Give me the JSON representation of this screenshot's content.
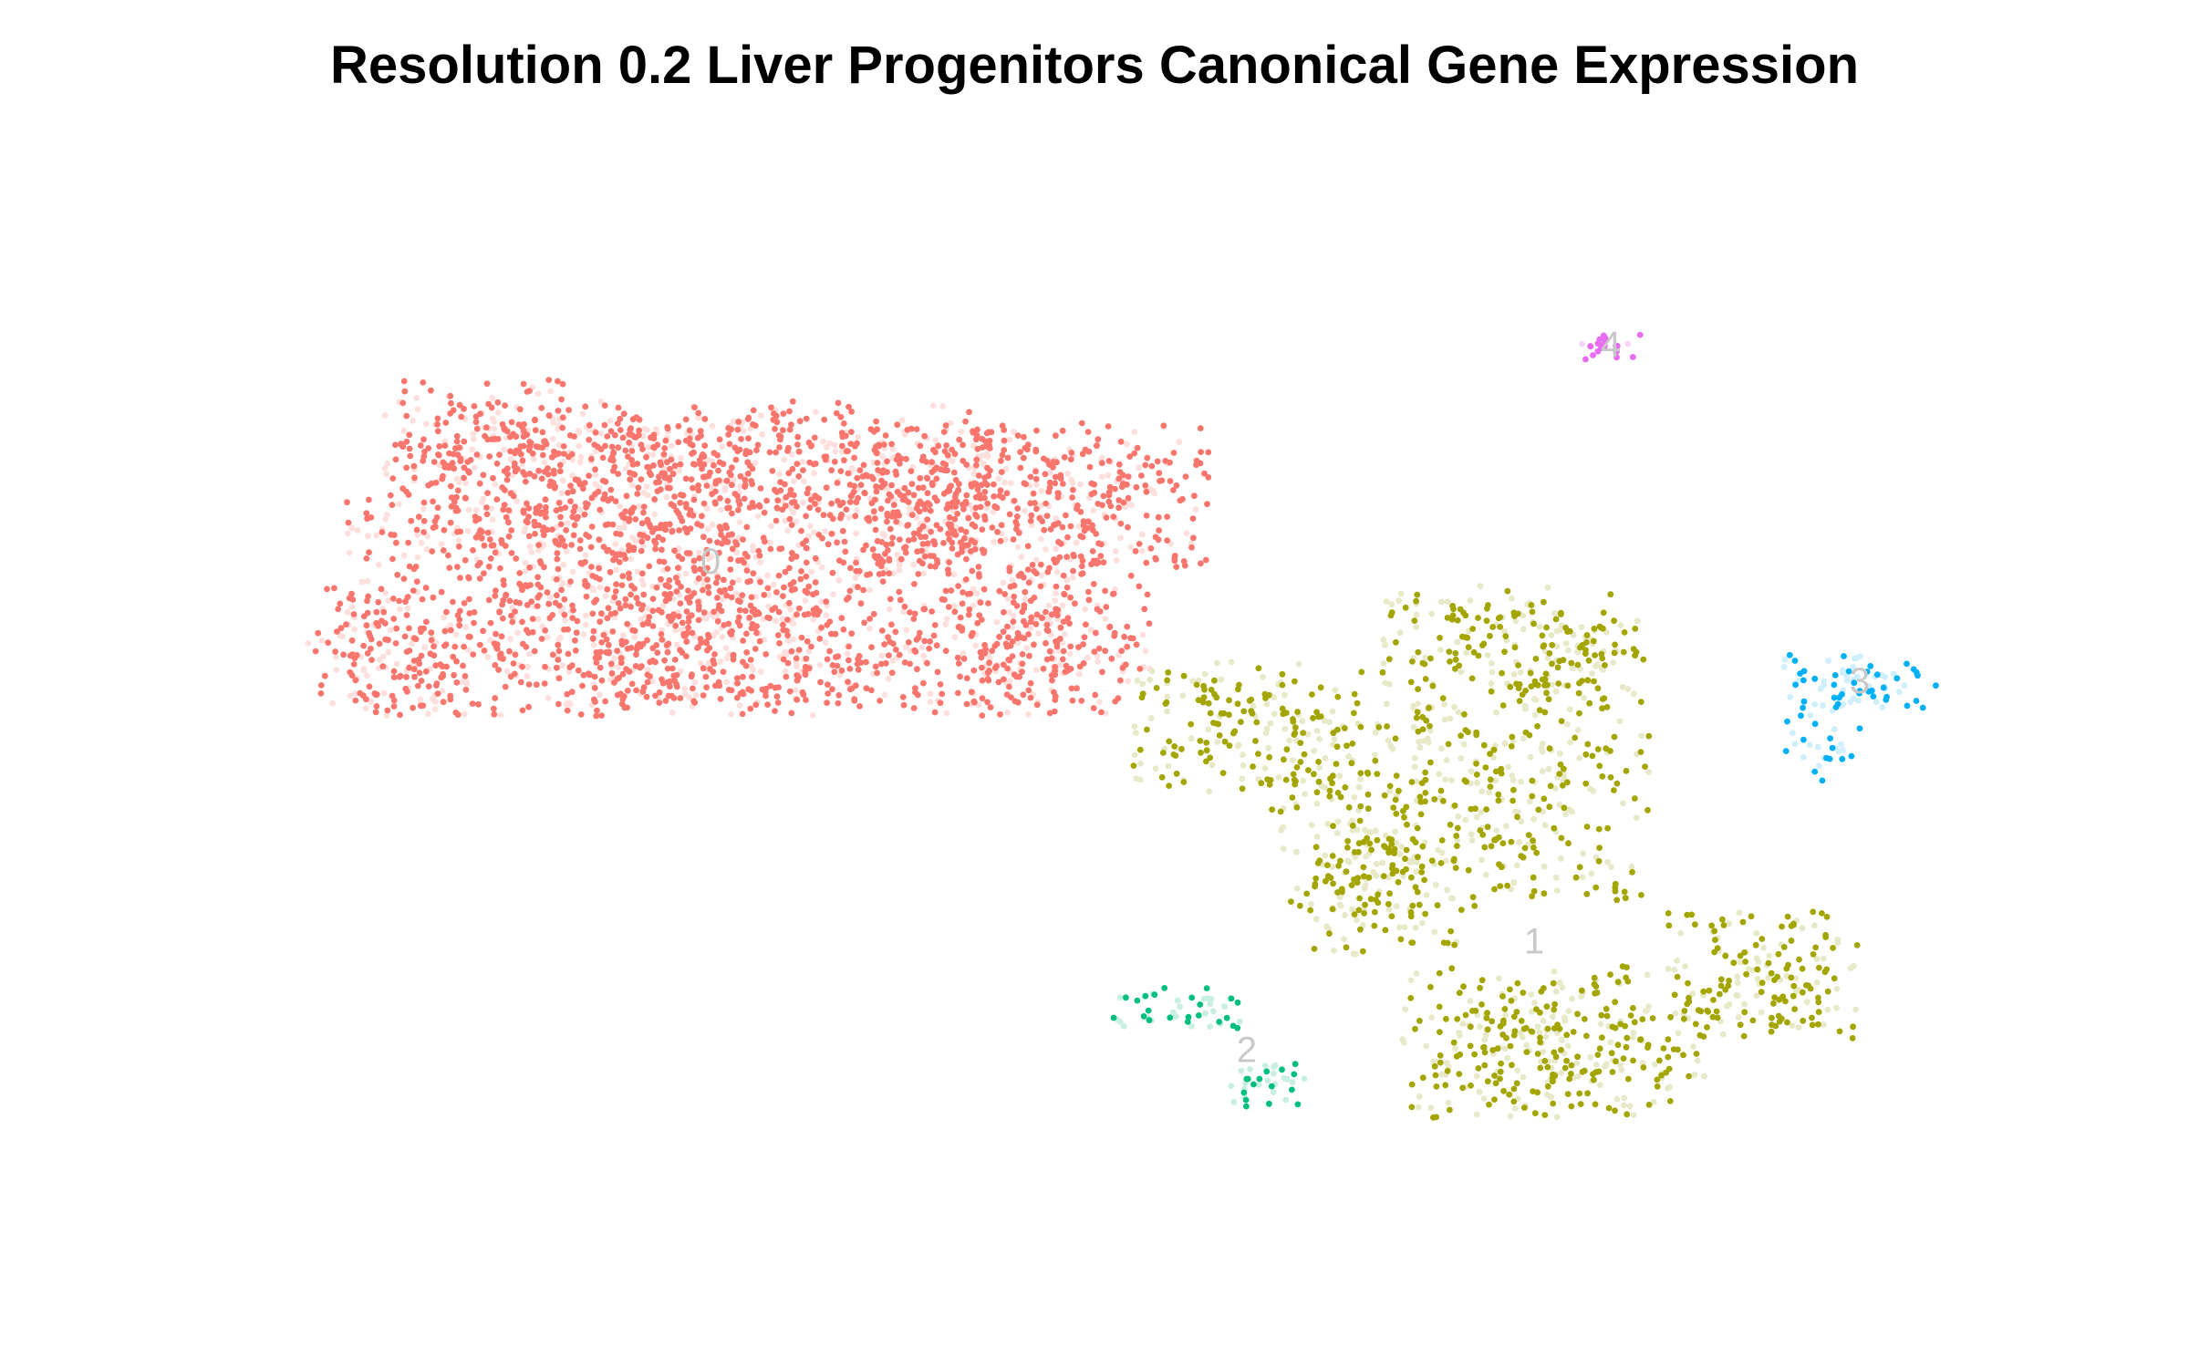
{
  "chart_data": {
    "type": "scatter",
    "title": "Resolution 0.2 Liver Progenitors Canonical Gene Expression",
    "xlabel": "",
    "ylabel": "",
    "axes_visible": false,
    "grid": false,
    "legend": "none",
    "xlim": [
      0,
      100
    ],
    "ylim": [
      0,
      100
    ],
    "series": [
      {
        "name": "0",
        "color": "#F8766D",
        "faint_color": "#FDE0DE",
        "label_pos": [
          29,
          64
        ],
        "blobs": [
          [
            28,
            72,
            16,
            7,
            950,
            0.25
          ],
          [
            22,
            60,
            12,
            10,
            700,
            0.25
          ],
          [
            34,
            58,
            14,
            8,
            650,
            0.3
          ],
          [
            45,
            70,
            10,
            7,
            550,
            0.25
          ],
          [
            47,
            58,
            5,
            8,
            250,
            0.3
          ],
          [
            12,
            56,
            4,
            6,
            120,
            0.4
          ],
          [
            18,
            76,
            5,
            5,
            120,
            0.3
          ]
        ]
      },
      {
        "name": "1",
        "color": "#A3A500",
        "faint_color": "#E8E9C9",
        "label_pos": [
          72,
          29
        ],
        "blobs": [
          [
            57,
            49,
            6,
            6,
            180,
            0.4
          ],
          [
            68,
            42,
            10,
            10,
            450,
            0.4
          ],
          [
            73,
            20,
            8,
            7,
            350,
            0.4
          ],
          [
            84,
            26,
            5,
            6,
            180,
            0.4
          ],
          [
            70,
            57,
            6,
            5,
            150,
            0.4
          ],
          [
            64,
            34,
            4,
            6,
            120,
            0.4
          ],
          [
            74,
            55,
            4,
            5,
            100,
            0.45
          ]
        ]
      },
      {
        "name": "2",
        "color": "#00BF7D",
        "faint_color": "#C8EFE2",
        "label_pos": [
          57,
          19
        ],
        "blobs": [
          [
            53,
            23,
            4,
            2,
            45,
            0.45
          ],
          [
            58,
            16,
            2,
            2,
            35,
            0.55
          ]
        ]
      },
      {
        "name": "3",
        "color": "#00B0F6",
        "faint_color": "#CFEFFC",
        "label_pos": [
          89,
          53
        ],
        "blobs": [
          [
            89,
            53,
            4,
            3,
            80,
            0.5
          ],
          [
            87,
            47,
            2,
            3,
            25,
            0.5
          ]
        ]
      },
      {
        "name": "4",
        "color": "#E76BF3",
        "faint_color": "#F7D6FA",
        "label_pos": [
          76,
          84
        ],
        "blobs": [
          [
            76,
            84,
            1.6,
            1.2,
            22,
            0.2
          ]
        ]
      }
    ]
  }
}
